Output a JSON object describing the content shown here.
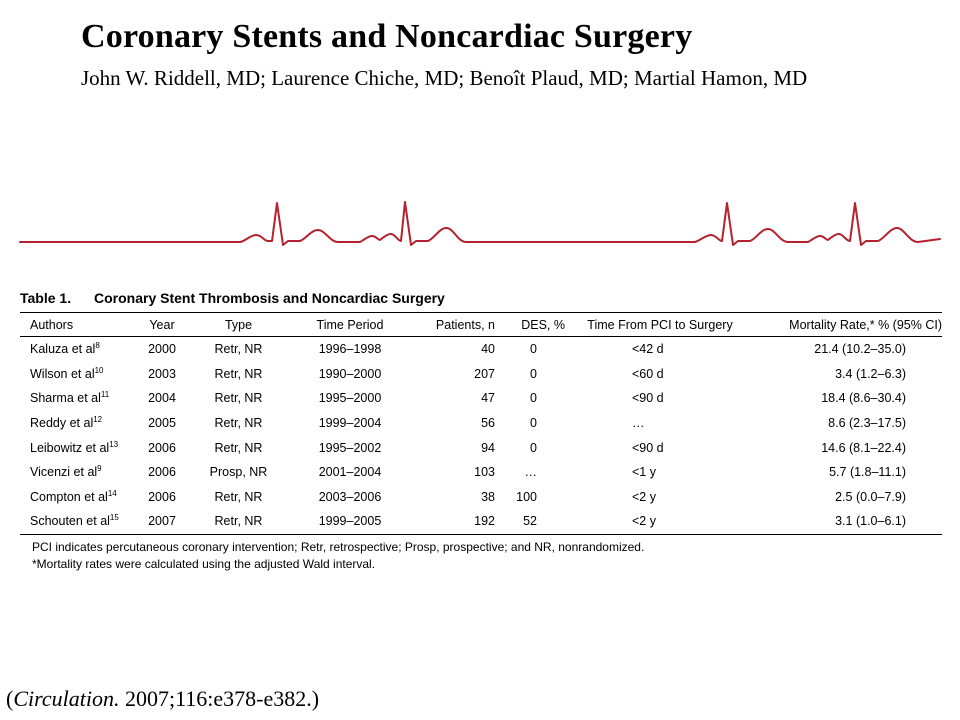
{
  "header": {
    "title": "Coronary Stents and Noncardiac Surgery",
    "authors": "John W. Riddell, MD; Laurence Chiche, MD; Benoît Plaud, MD; Martial Hamon, MD"
  },
  "decoration": {
    "ecg_color": "#b5212e"
  },
  "table": {
    "number": "Table 1.",
    "title": "Coronary Stent Thrombosis and Noncardiac Surgery",
    "columns": [
      "Authors",
      "Year",
      "Type",
      "Time Period",
      "Patients, n",
      "DES, %",
      "Time From PCI to Surgery",
      "Mortality Rate,* % (95% CI)"
    ],
    "rows": [
      {
        "author": "Kaluza et al",
        "ref": "8",
        "year": "2000",
        "type": "Retr, NR",
        "period": "1996–1998",
        "patients": "40",
        "des": "0",
        "time": "<42 d",
        "mortality": "21.4 (10.2–35.0)"
      },
      {
        "author": "Wilson et al",
        "ref": "10",
        "year": "2003",
        "type": "Retr, NR",
        "period": "1990–2000",
        "patients": "207",
        "des": "0",
        "time": "<60 d",
        "mortality": "3.4 (1.2–6.3)"
      },
      {
        "author": "Sharma et al",
        "ref": "11",
        "year": "2004",
        "type": "Retr, NR",
        "period": "1995–2000",
        "patients": "47",
        "des": "0",
        "time": "<90 d",
        "mortality": "18.4 (8.6–30.4)"
      },
      {
        "author": "Reddy et al",
        "ref": "12",
        "year": "2005",
        "type": "Retr, NR",
        "period": "1999–2004",
        "patients": "56",
        "des": "0",
        "time": "…",
        "mortality": "8.6 (2.3–17.5)"
      },
      {
        "author": "Leibowitz et al",
        "ref": "13",
        "year": "2006",
        "type": "Retr, NR",
        "period": "1995–2002",
        "patients": "94",
        "des": "0",
        "time": "<90 d",
        "mortality": "14.6 (8.1–22.4)"
      },
      {
        "author": "Vicenzi et al",
        "ref": "9",
        "year": "2006",
        "type": "Prosp, NR",
        "period": "2001–2004",
        "patients": "103",
        "des": "…",
        "time": "<1 y",
        "mortality": "5.7 (1.8–11.1)"
      },
      {
        "author": "Compton et al",
        "ref": "14",
        "year": "2006",
        "type": "Retr, NR",
        "period": "2003–2006",
        "patients": "38",
        "des": "100",
        "time": "<2 y",
        "mortality": "2.5 (0.0–7.9)"
      },
      {
        "author": "Schouten et al",
        "ref": "15",
        "year": "2007",
        "type": "Retr, NR",
        "period": "1999–2005",
        "patients": "192",
        "des": "52",
        "time": "<2 y",
        "mortality": "3.1 (1.0–6.1)"
      }
    ],
    "notes": [
      "PCI indicates percutaneous coronary intervention; Retr, retrospective; Prosp, prospective; and NR, nonrandomized.",
      "*Mortality rates were calculated using the adjusted Wald interval."
    ]
  },
  "citation": {
    "open": "(",
    "journal": "Circulation.",
    "rest": " 2007;116:e378-e382.)"
  }
}
